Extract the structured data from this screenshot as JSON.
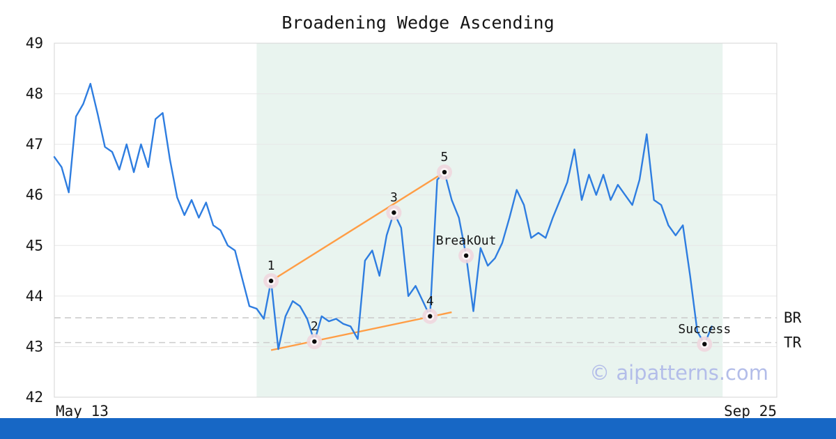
{
  "page": {
    "background": "#ffffff",
    "footer_color": "#1767c5",
    "watermark_color": "#b3bde9"
  },
  "chart_data": {
    "type": "line",
    "title": "Broadening Wedge Ascending",
    "watermark": "© aipatterns.com",
    "xlim": [
      0,
      100
    ],
    "ylim": [
      42,
      49
    ],
    "y_ticks": [
      42,
      43,
      44,
      45,
      46,
      47,
      48,
      49
    ],
    "x_ticks": [
      {
        "pos": 0,
        "label": "May 13"
      },
      {
        "pos": 100,
        "label": "Sep 25"
      }
    ],
    "grid": "horizontal",
    "series": [
      {
        "name": "price",
        "color": "#2e7de0",
        "x_start": 0,
        "x_step": 1,
        "values": [
          46.75,
          46.55,
          46.05,
          47.55,
          47.8,
          48.2,
          47.6,
          46.95,
          46.85,
          46.5,
          47.0,
          46.45,
          47.0,
          46.55,
          47.5,
          47.62,
          46.7,
          45.95,
          45.6,
          45.9,
          45.55,
          45.85,
          45.4,
          45.3,
          45.0,
          44.9,
          44.35,
          43.8,
          43.75,
          43.55,
          44.3,
          42.95,
          43.6,
          43.9,
          43.8,
          43.55,
          43.1,
          43.6,
          43.5,
          43.55,
          43.45,
          43.4,
          43.15,
          44.7,
          44.9,
          44.4,
          45.2,
          45.65,
          45.35,
          44.0,
          44.2,
          43.9,
          43.6,
          46.3,
          46.45,
          45.9,
          45.55,
          44.8,
          43.7,
          44.95,
          44.6,
          44.75,
          45.05,
          45.55,
          46.1,
          45.8,
          45.15,
          45.25,
          45.15,
          45.55,
          45.9,
          46.25,
          46.9,
          45.9,
          46.4,
          46.0,
          46.4,
          45.9,
          46.2,
          46.0,
          45.8,
          46.3,
          47.2,
          45.9,
          45.8,
          45.4,
          45.2,
          45.4,
          44.4,
          43.3,
          43.05,
          43.4
        ]
      }
    ],
    "shaded_region": {
      "x_start": 28,
      "x_end": 92.5,
      "color": "#e9f4ef"
    },
    "trendlines": [
      {
        "name": "upper",
        "x1": 30,
        "y1": 44.3,
        "x2": 54,
        "y2": 46.45,
        "color": "#ff9d45"
      },
      {
        "name": "lower",
        "x1": 30,
        "y1": 42.93,
        "x2": 55,
        "y2": 43.68,
        "color": "#ff9d45"
      }
    ],
    "hlines": [
      {
        "y": 43.57,
        "label": "BR",
        "color": "#cccccc",
        "style": "dashed"
      },
      {
        "y": 43.08,
        "label": "TR",
        "color": "#cccccc",
        "style": "dashed"
      }
    ],
    "markers": [
      {
        "x": 30,
        "y": 44.3,
        "label": "1"
      },
      {
        "x": 36,
        "y": 43.1,
        "label": "2"
      },
      {
        "x": 47,
        "y": 45.65,
        "label": "3"
      },
      {
        "x": 52,
        "y": 43.6,
        "label": "4"
      },
      {
        "x": 54,
        "y": 46.45,
        "label": "5"
      },
      {
        "x": 57,
        "y": 44.8,
        "label": "BreakOut"
      },
      {
        "x": 90,
        "y": 43.05,
        "label": "Success"
      }
    ],
    "marker_style": {
      "halo_color": "#f0d7de",
      "inner_color": "#fbf4f6",
      "dot_color": "#0a0a0a"
    }
  }
}
